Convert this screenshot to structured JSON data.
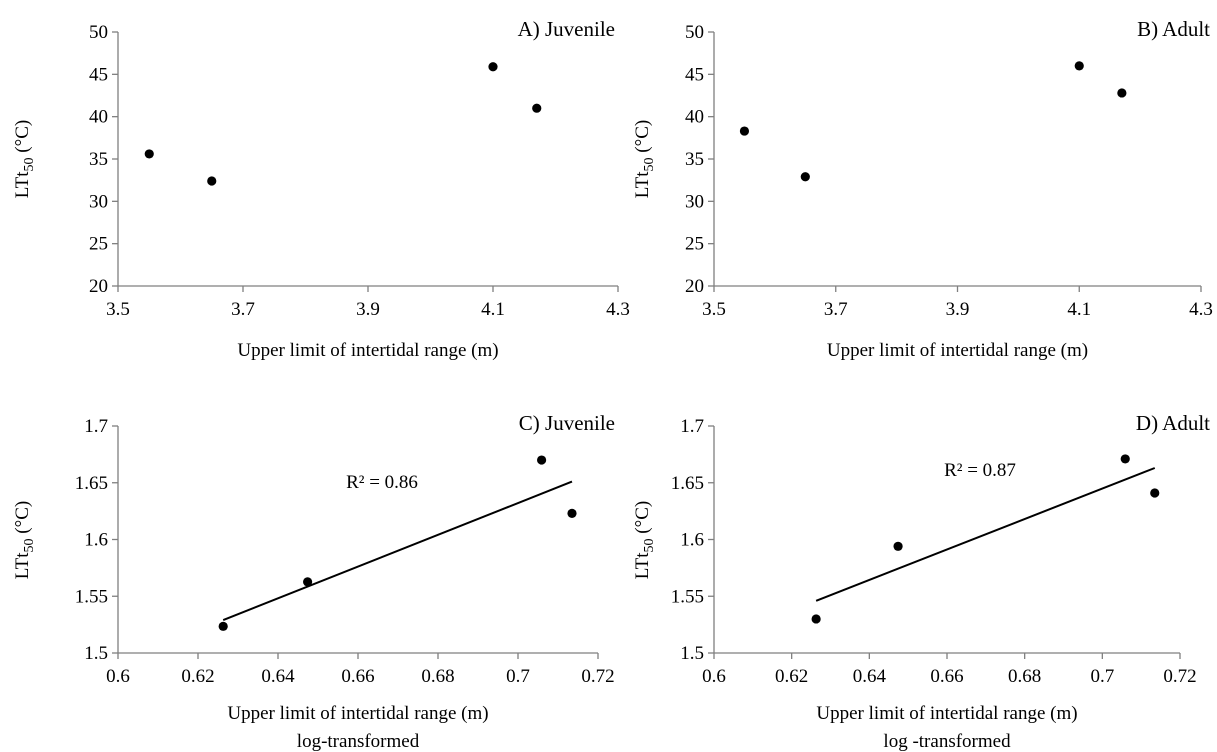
{
  "chart_data": [
    {
      "type": "scatter",
      "title": "A) Juvenile",
      "xlabel": "Upper limit of intertidal range (m)",
      "xlabel2": "",
      "ylabel_main": "LTt",
      "ylabel_sub": "50",
      "ylabel_unit": " (°C)",
      "xlim": [
        3.5,
        4.3
      ],
      "ylim": [
        20,
        50
      ],
      "xticks": [
        "3.5",
        "3.7",
        "3.9",
        "4.1",
        "4.3"
      ],
      "yticks": [
        "20",
        "25",
        "30",
        "35",
        "40",
        "45",
        "50"
      ],
      "grid": false,
      "points": [
        {
          "x": 3.55,
          "y": 35.6
        },
        {
          "x": 3.65,
          "y": 32.4
        },
        {
          "x": 4.1,
          "y": 45.9
        },
        {
          "x": 4.17,
          "y": 41.0
        }
      ],
      "trendline": null,
      "annotation": ""
    },
    {
      "type": "scatter",
      "title": "B) Adult",
      "xlabel": "Upper limit of intertidal range (m)",
      "xlabel2": "",
      "ylabel_main": "LTt",
      "ylabel_sub": "50",
      "ylabel_unit": " (°C)",
      "xlim": [
        3.5,
        4.3
      ],
      "ylim": [
        20,
        50
      ],
      "xticks": [
        "3.5",
        "3.7",
        "3.9",
        "4.1",
        "4.3"
      ],
      "yticks": [
        "20",
        "25",
        "30",
        "35",
        "40",
        "45",
        "50"
      ],
      "grid": false,
      "points": [
        {
          "x": 3.55,
          "y": 38.3
        },
        {
          "x": 3.65,
          "y": 32.9
        },
        {
          "x": 4.1,
          "y": 46.0
        },
        {
          "x": 4.17,
          "y": 42.8
        }
      ],
      "trendline": null,
      "annotation": ""
    },
    {
      "type": "scatter",
      "title": "C) Juvenile",
      "xlabel": "Upper limit of intertidal range (m)",
      "xlabel2": "log-transformed",
      "ylabel_main": "LTt",
      "ylabel_sub": "50",
      "ylabel_unit": " (°C)",
      "xlim": [
        0.6,
        0.72
      ],
      "ylim": [
        1.5,
        1.7
      ],
      "xticks": [
        "0.6",
        "0.62",
        "0.64",
        "0.66",
        "0.68",
        "0.7",
        "0.72"
      ],
      "yticks": [
        "1.5",
        "1.55",
        "1.6",
        "1.65",
        "1.7"
      ],
      "grid": false,
      "points": [
        {
          "x": 0.6263,
          "y": 1.5235
        },
        {
          "x": 0.6474,
          "y": 1.5627
        },
        {
          "x": 0.7059,
          "y": 1.67
        },
        {
          "x": 0.7135,
          "y": 1.623
        }
      ],
      "trendline": {
        "x1": 0.6263,
        "y1": 1.529,
        "x2": 0.7135,
        "y2": 1.651
      },
      "annotation": "R² = 0.86"
    },
    {
      "type": "scatter",
      "title": "D) Adult",
      "xlabel": "Upper limit of intertidal range (m)",
      "xlabel2": "log -transformed",
      "ylabel_main": "LTt",
      "ylabel_sub": "50",
      "ylabel_unit": " (°C)",
      "xlim": [
        0.6,
        0.72
      ],
      "ylim": [
        1.5,
        1.7
      ],
      "xticks": [
        "0.6",
        "0.62",
        "0.64",
        "0.66",
        "0.68",
        "0.7",
        "0.72"
      ],
      "yticks": [
        "1.5",
        "1.55",
        "1.6",
        "1.65",
        "1.7"
      ],
      "grid": false,
      "points": [
        {
          "x": 0.6263,
          "y": 1.53
        },
        {
          "x": 0.6474,
          "y": 1.594
        },
        {
          "x": 0.7059,
          "y": 1.671
        },
        {
          "x": 0.7135,
          "y": 1.641
        }
      ],
      "trendline": {
        "x1": 0.6263,
        "y1": 1.546,
        "x2": 0.7135,
        "y2": 1.663
      },
      "annotation": "R² = 0.87"
    }
  ]
}
